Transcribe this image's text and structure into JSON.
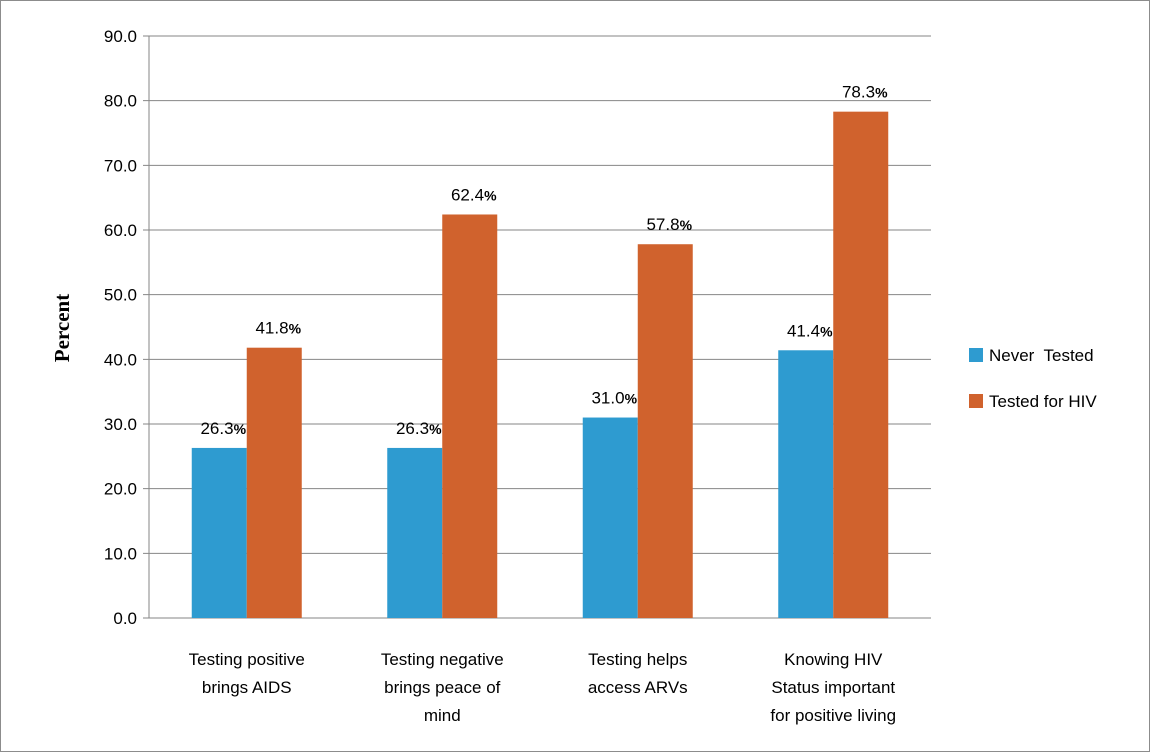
{
  "chart_data": {
    "type": "bar",
    "ylabel": "Percent",
    "xlabel": "",
    "ylim": [
      0,
      90
    ],
    "yticks": [
      "0.0",
      "10.0",
      "20.0",
      "30.0",
      "40.0",
      "50.0",
      "60.0",
      "70.0",
      "80.0",
      "90.0"
    ],
    "grid": true,
    "legend_position": "right",
    "categories": [
      [
        "Testing positive",
        "brings AIDS"
      ],
      [
        "Testing negative",
        "brings peace of",
        "mind"
      ],
      [
        "Testing helps",
        "access ARVs"
      ],
      [
        "Knowing HIV",
        "Status important",
        "for positive living"
      ]
    ],
    "series": [
      {
        "name": "Never  Tested",
        "color": "#2e9bd0",
        "values": [
          26.3,
          26.3,
          31.0,
          41.4
        ],
        "labels": [
          "26.3",
          "26.3",
          "31.0",
          "41.4"
        ]
      },
      {
        "name": "Tested for HIV",
        "color": "#d0622d",
        "values": [
          41.8,
          62.4,
          57.8,
          78.3
        ],
        "labels": [
          "41.8",
          "62.4",
          "57.8",
          "78.3"
        ]
      }
    ],
    "label_suffix": "%"
  }
}
